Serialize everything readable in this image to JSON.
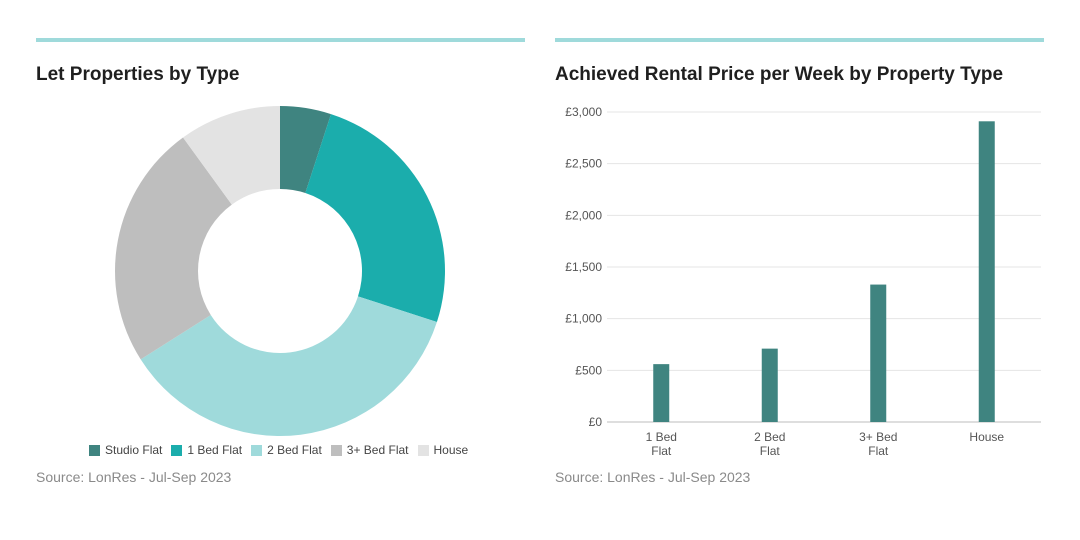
{
  "colors": {
    "rule": "#9fdadb",
    "studio": "#3f8480",
    "onebed": "#1badac",
    "twobed": "#9fdadb",
    "threebed": "#bebebe",
    "house": "#e3e3e3",
    "bar": "#3f8480",
    "grid": "#e4e4e4"
  },
  "left": {
    "title": "Let Properties by Type",
    "source": "Source: LonRes - Jul-Sep 2023"
  },
  "right": {
    "title": "Achieved Rental Price per Week by Property Type",
    "source": "Source: LonRes - Jul-Sep 2023"
  },
  "chart_data": [
    {
      "type": "pie",
      "title": "Let Properties by Type",
      "donut": true,
      "legend_position": "bottom",
      "slices": [
        {
          "label": "Studio Flat",
          "value": 5
        },
        {
          "label": "1 Bed Flat",
          "value": 25
        },
        {
          "label": "2 Bed Flat",
          "value": 36
        },
        {
          "label": "3+ Bed Flat",
          "value": 24
        },
        {
          "label": "House",
          "value": 10
        }
      ]
    },
    {
      "type": "bar",
      "title": "Achieved Rental Price per Week by Property Type",
      "categories": [
        [
          "1 Bed",
          "Flat"
        ],
        [
          "2 Bed",
          "Flat"
        ],
        [
          "3+ Bed",
          "Flat"
        ],
        [
          "House"
        ]
      ],
      "values": [
        560,
        710,
        1330,
        2910
      ],
      "ylim": [
        0,
        3000
      ],
      "yticks": [
        0,
        500,
        1000,
        1500,
        2000,
        2500,
        3000
      ],
      "ytick_labels": [
        "£0",
        "£500",
        "£1,000",
        "£1,500",
        "£2,000",
        "£2,500",
        "£3,000"
      ],
      "grid": true
    }
  ]
}
